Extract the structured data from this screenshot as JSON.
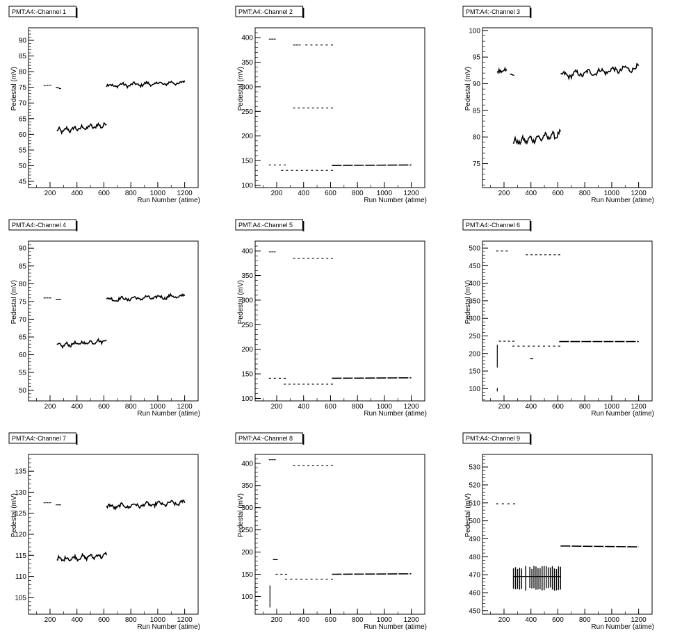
{
  "chart_data": [
    {
      "type": "scatter",
      "title": "PMT:A4:-Channel 1",
      "xlabel": "Run Number (atime)",
      "ylabel": "Pedestal (mV)",
      "xlim": [
        40,
        1300
      ],
      "ylim": [
        43,
        94
      ],
      "xticks": [
        200,
        400,
        600,
        800,
        1000,
        1200
      ],
      "yticks": [
        45,
        50,
        55,
        60,
        65,
        70,
        75,
        80,
        85,
        90
      ],
      "segments": [
        {
          "x": [
            160,
            200
          ],
          "y": [
            75.5,
            75.7
          ],
          "kind": "dots"
        },
        {
          "x": [
            250,
            275
          ],
          "y": [
            75.0,
            74.6
          ],
          "kind": "dots"
        },
        {
          "x": [
            250,
            620
          ],
          "y": [
            61,
            63
          ],
          "kind": "noisy",
          "amp": 1.2
        },
        {
          "x": [
            620,
            1200
          ],
          "y": [
            75.5,
            76.5
          ],
          "kind": "noisy",
          "amp": 0.9
        }
      ]
    },
    {
      "type": "scatter",
      "title": "PMT:A4:-Channel 2",
      "xlabel": "Run Number (atime)",
      "ylabel": "Pedestal (mV)",
      "xlim": [
        40,
        1300
      ],
      "ylim": [
        95,
        420
      ],
      "xticks": [
        200,
        400,
        600,
        800,
        1000,
        1200
      ],
      "yticks": [
        100,
        150,
        200,
        250,
        300,
        350,
        400
      ],
      "segments": [
        {
          "x": [
            150,
            185
          ],
          "y": [
            397,
            397
          ],
          "kind": "dots"
        },
        {
          "x": [
            330,
            370
          ],
          "y": [
            385,
            385
          ],
          "kind": "dots"
        },
        {
          "x": [
            420,
            610
          ],
          "y": [
            385,
            385
          ],
          "kind": "dots"
        },
        {
          "x": [
            330,
            610
          ],
          "y": [
            257,
            257
          ],
          "kind": "dots"
        },
        {
          "x": [
            150,
            260
          ],
          "y": [
            141,
            141
          ],
          "kind": "dots"
        },
        {
          "x": [
            240,
            610
          ],
          "y": [
            130,
            130
          ],
          "kind": "dots"
        },
        {
          "x": [
            610,
            1200
          ],
          "y": [
            140,
            141
          ],
          "kind": "line"
        }
      ]
    },
    {
      "type": "scatter",
      "title": "PMT:A4:-Channel 3",
      "xlabel": "Run Number (atime)",
      "ylabel": "Pedestal (mV)",
      "xlim": [
        40,
        1300
      ],
      "ylim": [
        70.5,
        100.5
      ],
      "xticks": [
        200,
        400,
        600,
        800,
        1000,
        1200
      ],
      "yticks": [
        75,
        80,
        85,
        90,
        95,
        100
      ],
      "segments": [
        {
          "x": [
            150,
            220
          ],
          "y": [
            92.4,
            92.6
          ],
          "kind": "noisy",
          "amp": 0.5
        },
        {
          "x": [
            250,
            270
          ],
          "y": [
            91.8,
            91.6
          ],
          "kind": "dots"
        },
        {
          "x": [
            270,
            620
          ],
          "y": [
            79,
            80.5
          ],
          "kind": "noisy",
          "amp": 0.9
        },
        {
          "x": [
            620,
            1200
          ],
          "y": [
            91.5,
            93
          ],
          "kind": "noisy",
          "amp": 0.8
        }
      ]
    },
    {
      "type": "scatter",
      "title": "PMT:A4:-Channel 4",
      "xlabel": "Run Number (atime)",
      "ylabel": "Pedestal (mV)",
      "xlim": [
        40,
        1300
      ],
      "ylim": [
        47,
        92
      ],
      "xticks": [
        200,
        400,
        600,
        800,
        1000,
        1200
      ],
      "yticks": [
        50,
        55,
        60,
        65,
        70,
        75,
        80,
        85,
        90
      ],
      "segments": [
        {
          "x": [
            160,
            200
          ],
          "y": [
            76,
            76
          ],
          "kind": "dots"
        },
        {
          "x": [
            250,
            275
          ],
          "y": [
            75.5,
            75.5
          ],
          "kind": "dots"
        },
        {
          "x": [
            250,
            620
          ],
          "y": [
            62.5,
            64
          ],
          "kind": "noisy",
          "amp": 0.8
        },
        {
          "x": [
            620,
            1200
          ],
          "y": [
            75.5,
            76.5
          ],
          "kind": "noisy",
          "amp": 0.8
        }
      ]
    },
    {
      "type": "scatter",
      "title": "PMT:A4:-Channel 5",
      "xlabel": "Run Number (atime)",
      "ylabel": "Pedestal (mV)",
      "xlim": [
        40,
        1300
      ],
      "ylim": [
        95,
        420
      ],
      "xticks": [
        200,
        400,
        600,
        800,
        1000,
        1200
      ],
      "yticks": [
        100,
        150,
        200,
        250,
        300,
        350,
        400
      ],
      "segments": [
        {
          "x": [
            150,
            185
          ],
          "y": [
            398,
            398
          ],
          "kind": "dots"
        },
        {
          "x": [
            330,
            610
          ],
          "y": [
            385,
            385
          ],
          "kind": "dots"
        },
        {
          "x": [
            150,
            260
          ],
          "y": [
            141,
            141
          ],
          "kind": "dots"
        },
        {
          "x": [
            260,
            610
          ],
          "y": [
            129,
            129
          ],
          "kind": "dots"
        },
        {
          "x": [
            610,
            1200
          ],
          "y": [
            141,
            142
          ],
          "kind": "line"
        }
      ]
    },
    {
      "type": "scatter",
      "title": "PMT:A4:-Channel 6",
      "xlabel": "Run Number (atime)",
      "ylabel": "Pedestal (mV)",
      "xlim": [
        40,
        1300
      ],
      "ylim": [
        65,
        520
      ],
      "xticks": [
        200,
        400,
        600,
        800,
        1000,
        1200
      ],
      "yticks": [
        100,
        150,
        200,
        250,
        300,
        350,
        400,
        450,
        500
      ],
      "segments": [
        {
          "x": [
            150,
            220
          ],
          "y": [
            492,
            492
          ],
          "kind": "dots"
        },
        {
          "x": [
            370,
            610
          ],
          "y": [
            481,
            481
          ],
          "kind": "dots"
        },
        {
          "x": [
            150,
            150
          ],
          "y": [
            160,
            225
          ],
          "kind": "vline"
        },
        {
          "x": [
            150,
            150
          ],
          "y": [
            92,
            102
          ],
          "kind": "vline"
        },
        {
          "x": [
            170,
            270
          ],
          "y": [
            235,
            235
          ],
          "kind": "dots"
        },
        {
          "x": [
            270,
            610
          ],
          "y": [
            221,
            221
          ],
          "kind": "dots"
        },
        {
          "x": [
            400,
            410
          ],
          "y": [
            185,
            185
          ],
          "kind": "dots"
        },
        {
          "x": [
            610,
            1200
          ],
          "y": [
            234,
            234
          ],
          "kind": "line"
        }
      ]
    },
    {
      "type": "scatter",
      "title": "PMT:A4:-Channel 7",
      "xlabel": "Run Number (atime)",
      "ylabel": "Pedestal (mV)",
      "xlim": [
        40,
        1300
      ],
      "ylim": [
        101,
        139
      ],
      "xticks": [
        200,
        400,
        600,
        800,
        1000,
        1200
      ],
      "yticks": [
        105,
        110,
        115,
        120,
        125,
        130,
        135
      ],
      "segments": [
        {
          "x": [
            160,
            200
          ],
          "y": [
            127.5,
            127.5
          ],
          "kind": "dots"
        },
        {
          "x": [
            250,
            275
          ],
          "y": [
            127,
            127
          ],
          "kind": "dots"
        },
        {
          "x": [
            250,
            620
          ],
          "y": [
            114,
            115
          ],
          "kind": "noisy",
          "amp": 0.8
        },
        {
          "x": [
            620,
            1200
          ],
          "y": [
            126.5,
            127.5
          ],
          "kind": "noisy",
          "amp": 0.8
        }
      ]
    },
    {
      "type": "scatter",
      "title": "PMT:A4:-Channel 8",
      "xlabel": "Run Number (atime)",
      "ylabel": "Pedestal (mV)",
      "xlim": [
        40,
        1300
      ],
      "ylim": [
        60,
        420
      ],
      "xticks": [
        200,
        400,
        600,
        800,
        1000,
        1200
      ],
      "yticks": [
        100,
        150,
        200,
        250,
        300,
        350,
        400
      ],
      "segments": [
        {
          "x": [
            150,
            185
          ],
          "y": [
            408,
            408
          ],
          "kind": "dots"
        },
        {
          "x": [
            330,
            610
          ],
          "y": [
            395,
            395
          ],
          "kind": "dots"
        },
        {
          "x": [
            150,
            150
          ],
          "y": [
            75,
            125
          ],
          "kind": "vline"
        },
        {
          "x": [
            180,
            200
          ],
          "y": [
            183,
            183
          ],
          "kind": "dots"
        },
        {
          "x": [
            200,
            270
          ],
          "y": [
            150,
            150
          ],
          "kind": "dots"
        },
        {
          "x": [
            270,
            610
          ],
          "y": [
            139,
            139
          ],
          "kind": "dots"
        },
        {
          "x": [
            610,
            1200
          ],
          "y": [
            150,
            151
          ],
          "kind": "line"
        }
      ]
    },
    {
      "type": "scatter",
      "title": "PMT:A4:-Channel 9",
      "xlabel": "Run Number (atime)",
      "ylabel": "Pedestal (mV)",
      "xlim": [
        40,
        1300
      ],
      "ylim": [
        448,
        537
      ],
      "xticks": [
        200,
        400,
        600,
        800,
        1000,
        1200
      ],
      "yticks": [
        450,
        460,
        470,
        480,
        490,
        500,
        510,
        520,
        530
      ],
      "segments": [
        {
          "x": [
            150,
            275
          ],
          "y": [
            509.5,
            509.5
          ],
          "kind": "dots"
        },
        {
          "x": [
            270,
            620
          ],
          "y": [
            462,
            474
          ],
          "kind": "bars"
        },
        {
          "x": [
            620,
            1200
          ],
          "y": [
            486,
            485.5
          ],
          "kind": "line"
        }
      ]
    }
  ]
}
